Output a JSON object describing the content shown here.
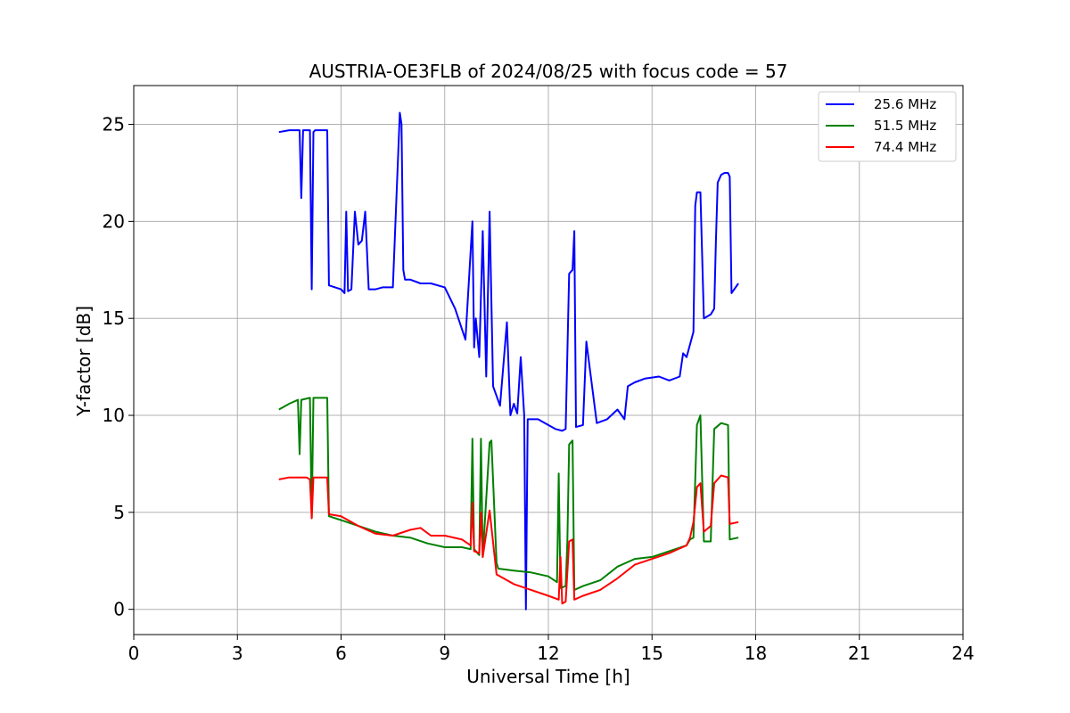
{
  "chart_data": {
    "type": "line",
    "title": "AUSTRIA-OE3FLB of 2024/08/25 with focus code = 57",
    "xlabel": "Universal Time [h]",
    "ylabel": "Y-factor [dB]",
    "xlim": [
      0,
      24
    ],
    "ylim": [
      -1.3,
      27
    ],
    "xticks": [
      0,
      3,
      6,
      9,
      12,
      15,
      18,
      21,
      24
    ],
    "yticks": [
      0,
      5,
      10,
      15,
      20,
      25
    ],
    "grid": true,
    "legend_position": "top-right",
    "series": [
      {
        "name": "25.6 MHz",
        "color": "#0000ff",
        "x": [
          4.2,
          4.5,
          4.8,
          4.85,
          4.9,
          5.1,
          5.15,
          5.2,
          5.25,
          5.6,
          5.65,
          6.0,
          6.1,
          6.15,
          6.2,
          6.3,
          6.4,
          6.5,
          6.6,
          6.7,
          6.8,
          7.0,
          7.2,
          7.5,
          7.7,
          7.75,
          7.8,
          7.85,
          8.0,
          8.3,
          8.6,
          9.0,
          9.3,
          9.6,
          9.8,
          9.85,
          9.9,
          10.0,
          10.1,
          10.2,
          10.3,
          10.4,
          10.5,
          10.6,
          10.8,
          10.9,
          11.0,
          11.1,
          11.2,
          11.3,
          11.35,
          11.4,
          11.5,
          11.7,
          11.9,
          12.2,
          12.4,
          12.5,
          12.6,
          12.7,
          12.75,
          12.8,
          13.0,
          13.1,
          13.4,
          13.7,
          14.0,
          14.2,
          14.3,
          14.5,
          14.8,
          15.2,
          15.5,
          15.8,
          15.9,
          16.0,
          16.2,
          16.25,
          16.3,
          16.4,
          16.5,
          16.7,
          16.8,
          16.85,
          16.9,
          17.0,
          17.1,
          17.2,
          17.25,
          17.3,
          17.5
        ],
        "values": [
          24.6,
          24.7,
          24.7,
          21.2,
          24.7,
          24.7,
          16.5,
          24.6,
          24.7,
          24.7,
          16.7,
          16.5,
          16.3,
          20.5,
          16.4,
          16.5,
          20.5,
          18.8,
          19.0,
          20.5,
          16.5,
          16.5,
          16.6,
          16.6,
          25.6,
          25.0,
          17.5,
          17.0,
          17.0,
          16.8,
          16.8,
          16.6,
          15.5,
          13.9,
          20.0,
          13.5,
          15.0,
          13.0,
          19.5,
          12.0,
          20.5,
          11.5,
          11.0,
          10.5,
          14.8,
          10.0,
          10.6,
          10.1,
          13.0,
          10.0,
          0.0,
          9.8,
          9.8,
          9.8,
          9.6,
          9.3,
          9.2,
          9.3,
          17.3,
          17.5,
          19.5,
          9.4,
          9.5,
          13.8,
          9.6,
          9.8,
          10.3,
          9.8,
          11.5,
          11.7,
          11.9,
          12.0,
          11.8,
          12.0,
          13.2,
          13.0,
          14.3,
          20.8,
          21.5,
          21.5,
          15.0,
          15.2,
          15.5,
          19.0,
          22.0,
          22.4,
          22.5,
          22.5,
          22.3,
          16.3,
          16.8
        ]
      },
      {
        "name": "51.5 MHz",
        "color": "#008000",
        "x": [
          4.2,
          4.5,
          4.75,
          4.8,
          4.85,
          5.1,
          5.15,
          5.2,
          5.25,
          5.6,
          5.65,
          6.0,
          6.5,
          7.0,
          7.5,
          8.0,
          8.5,
          9.0,
          9.5,
          9.75,
          9.8,
          9.85,
          10.0,
          10.05,
          10.1,
          10.3,
          10.35,
          10.5,
          10.55,
          11.0,
          11.5,
          12.0,
          12.25,
          12.3,
          12.35,
          12.5,
          12.55,
          12.6,
          12.7,
          12.75,
          13.0,
          13.5,
          14.0,
          14.5,
          15.0,
          15.5,
          16.0,
          16.1,
          16.2,
          16.3,
          16.4,
          16.5,
          16.7,
          16.8,
          17.0,
          17.2,
          17.25,
          17.5
        ],
        "values": [
          10.3,
          10.6,
          10.8,
          8.0,
          10.8,
          10.9,
          4.7,
          10.9,
          10.9,
          10.9,
          4.8,
          4.6,
          4.3,
          4.0,
          3.8,
          3.7,
          3.4,
          3.2,
          3.2,
          3.1,
          8.8,
          3.1,
          2.8,
          8.8,
          2.7,
          8.6,
          8.7,
          2.4,
          2.1,
          2.0,
          1.9,
          1.7,
          1.4,
          7.0,
          1.1,
          1.2,
          3.5,
          8.5,
          8.7,
          1.0,
          1.2,
          1.5,
          2.2,
          2.6,
          2.7,
          3.0,
          3.3,
          3.6,
          3.7,
          9.5,
          10.0,
          3.5,
          3.5,
          9.3,
          9.6,
          9.5,
          3.6,
          3.7
        ]
      },
      {
        "name": "74.4 MHz",
        "color": "#ff0000",
        "x": [
          4.2,
          4.5,
          5.0,
          5.1,
          5.15,
          5.2,
          5.3,
          5.6,
          5.65,
          6.0,
          6.5,
          7.0,
          7.5,
          8.0,
          8.3,
          8.6,
          9.0,
          9.5,
          9.75,
          9.8,
          9.85,
          10.0,
          10.05,
          10.1,
          10.3,
          10.5,
          11.0,
          11.5,
          12.0,
          12.3,
          12.35,
          12.4,
          12.5,
          12.6,
          12.7,
          12.75,
          13.0,
          13.5,
          14.0,
          14.5,
          15.0,
          15.5,
          16.0,
          16.1,
          16.2,
          16.3,
          16.4,
          16.5,
          16.7,
          16.8,
          17.0,
          17.2,
          17.25,
          17.5
        ],
        "values": [
          6.7,
          6.8,
          6.8,
          6.7,
          4.7,
          6.8,
          6.8,
          6.8,
          4.9,
          4.8,
          4.3,
          3.9,
          3.8,
          4.1,
          4.2,
          3.8,
          3.8,
          3.6,
          3.3,
          5.5,
          3.0,
          2.9,
          5.0,
          2.7,
          5.1,
          1.8,
          1.3,
          1.0,
          0.7,
          0.5,
          2.7,
          0.3,
          0.4,
          3.5,
          3.6,
          0.5,
          0.7,
          1.0,
          1.6,
          2.3,
          2.6,
          2.9,
          3.3,
          3.7,
          4.5,
          6.3,
          6.5,
          4.0,
          4.3,
          6.5,
          6.9,
          6.8,
          4.4,
          4.5
        ]
      }
    ]
  }
}
